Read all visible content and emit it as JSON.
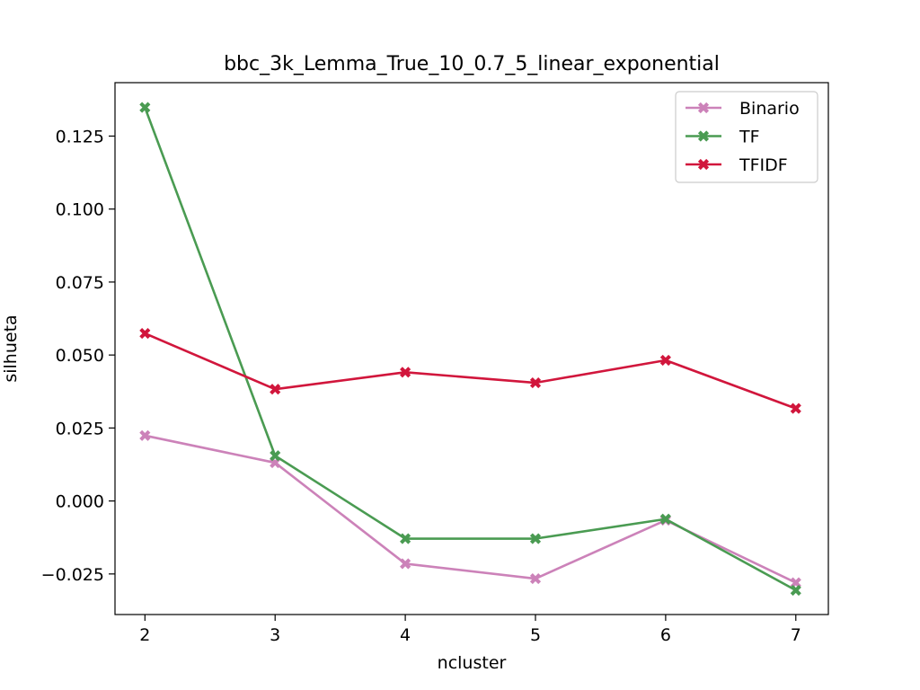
{
  "chart_data": {
    "type": "line",
    "title": "bbc_3k_Lemma_True_10_0.7_5_linear_exponential",
    "xlabel": "ncluster",
    "ylabel": "silhueta",
    "x": [
      2,
      3,
      4,
      5,
      6,
      7
    ],
    "xlim": [
      1.77,
      7.25
    ],
    "ylim": [
      -0.0389,
      0.1433
    ],
    "xticks": [
      2,
      3,
      4,
      5,
      6,
      7
    ],
    "xtick_labels": [
      "2",
      "3",
      "4",
      "5",
      "6",
      "7"
    ],
    "yticks": [
      -0.025,
      0.0,
      0.025,
      0.05,
      0.075,
      0.1,
      0.125
    ],
    "ytick_labels": [
      "−0.025",
      "0.000",
      "0.025",
      "0.050",
      "0.075",
      "0.100",
      "0.125"
    ],
    "grid": false,
    "legend_position": "top-right",
    "marker": "X",
    "series": [
      {
        "name": "Binario",
        "color": "#cc82b9",
        "values": [
          0.0224,
          0.0131,
          -0.0215,
          -0.0266,
          -0.0066,
          -0.028
        ]
      },
      {
        "name": "TF",
        "color": "#4a9b52",
        "values": [
          0.1348,
          0.0155,
          -0.0129,
          -0.0129,
          -0.0062,
          -0.0306
        ]
      },
      {
        "name": "TFIDF",
        "color": "#d1163c",
        "values": [
          0.0574,
          0.0383,
          0.0441,
          0.0405,
          0.0482,
          0.0317
        ]
      }
    ]
  }
}
